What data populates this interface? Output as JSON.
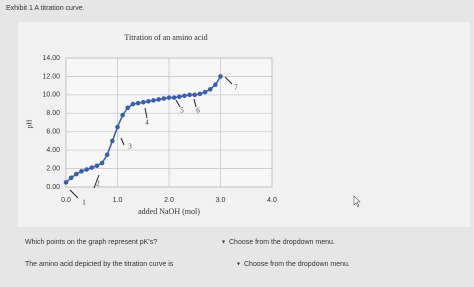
{
  "header": {
    "title": "Exhibit 1  A titration curve."
  },
  "chart_data": {
    "type": "line",
    "title": "Titration of an amino acid",
    "x_label": "added NaOH (mol)",
    "y_label": "pH",
    "x": [
      0,
      0.1,
      0.2,
      0.3,
      0.4,
      0.5,
      0.6,
      0.7,
      0.8,
      0.9,
      1.0,
      1.1,
      1.2,
      1.3,
      1.4,
      1.5,
      1.6,
      1.7,
      1.8,
      1.9,
      2.0,
      2.1,
      2.2,
      2.3,
      2.4,
      2.5,
      2.6,
      2.7,
      2.8,
      2.9,
      3.0
    ],
    "series": [
      {
        "name": "pH",
        "color": "#3a5ea8",
        "values": [
          0.5,
          1.0,
          1.4,
          1.7,
          1.9,
          2.1,
          2.3,
          2.6,
          3.5,
          5.0,
          6.5,
          7.8,
          8.6,
          9.0,
          9.1,
          9.2,
          9.3,
          9.4,
          9.5,
          9.6,
          9.7,
          9.7,
          9.8,
          9.9,
          10.0,
          10.0,
          10.1,
          10.3,
          10.6,
          11.1,
          12.0
        ]
      }
    ],
    "xlim": [
      0,
      4
    ],
    "xticks": [
      {
        "value": 0,
        "label": "0.0"
      },
      {
        "value": 1,
        "label": "1.0"
      },
      {
        "value": 2,
        "label": "2.0"
      },
      {
        "value": 3,
        "label": "3.0"
      },
      {
        "value": 4,
        "label": "4.0"
      }
    ],
    "ylim": [
      0,
      14
    ],
    "yticks": [
      {
        "value": 0,
        "label": "0.00"
      },
      {
        "value": 2,
        "label": "2.00"
      },
      {
        "value": 4,
        "label": "4.00"
      },
      {
        "value": 6,
        "label": "6.00"
      },
      {
        "value": 8,
        "label": "8.00"
      },
      {
        "value": 10,
        "label": "10.00"
      },
      {
        "value": 12,
        "label": "12.00"
      },
      {
        "value": 14,
        "label": "14.00"
      }
    ],
    "grid": true,
    "annotations": [
      "1",
      "2",
      "3",
      "4",
      "5",
      "6",
      "7"
    ]
  },
  "questions": [
    {
      "prompt": "Which points on the graph represent pK's?",
      "dropdown": "Choose from the dropdown menu."
    },
    {
      "prompt": "The amino acid depicted by the titration curve is",
      "dropdown": "Choose from the dropdown menu."
    }
  ]
}
